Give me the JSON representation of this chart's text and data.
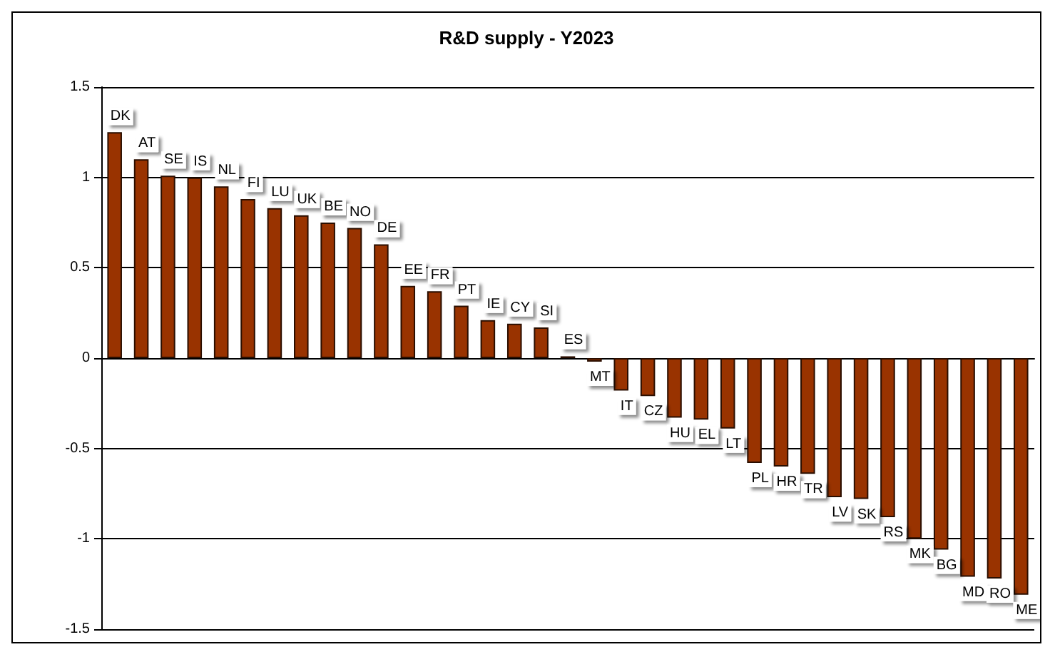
{
  "chart_data": {
    "type": "bar",
    "title": "R&D supply - Y2023",
    "categories": [
      "DK",
      "AT",
      "SE",
      "IS",
      "NL",
      "FI",
      "LU",
      "UK",
      "BE",
      "NO",
      "DE",
      "EE",
      "FR",
      "PT",
      "IE",
      "CY",
      "SI",
      "ES",
      "MT",
      "IT",
      "CZ",
      "HU",
      "EL",
      "LT",
      "PL",
      "HR",
      "TR",
      "LV",
      "SK",
      "RS",
      "MK",
      "BG",
      "MD",
      "RO",
      "ME"
    ],
    "values": [
      1.25,
      1.1,
      1.01,
      1.0,
      0.95,
      0.88,
      0.83,
      0.79,
      0.75,
      0.72,
      0.63,
      0.4,
      0.37,
      0.29,
      0.21,
      0.19,
      0.17,
      0.01,
      -0.02,
      -0.18,
      -0.21,
      -0.33,
      -0.34,
      -0.39,
      -0.58,
      -0.6,
      -0.64,
      -0.77,
      -0.78,
      -0.88,
      -1.0,
      -1.06,
      -1.21,
      -1.22,
      -1.31
    ],
    "color": "#993300",
    "ylim": [
      -1.5,
      1.5
    ],
    "yticks": [
      -1.5,
      -1,
      -0.5,
      0,
      0.5,
      1,
      1.5
    ],
    "grid": "y",
    "tick_labels": "y"
  }
}
